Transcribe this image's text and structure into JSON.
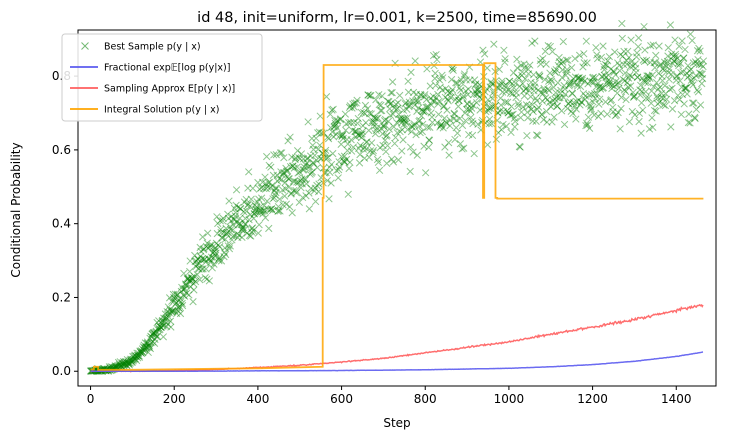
{
  "chart_data": {
    "type": "line",
    "title": "id 48, init=uniform, lr=0.001, k=2500, time=85690.00",
    "xlabel": "Step",
    "ylabel": "Conditional Probability",
    "xlim": [
      -30,
      1495
    ],
    "ylim": [
      -0.04,
      0.925
    ],
    "xticks": [
      0,
      200,
      400,
      600,
      800,
      1000,
      1200,
      1400
    ],
    "yticks": [
      0.0,
      0.2,
      0.4,
      0.6,
      0.8
    ],
    "ytick_labels": [
      "0.0",
      "0.2",
      "0.4",
      "0.6",
      "0.8"
    ],
    "grid": false,
    "legend_position": "upper-left",
    "series": [
      {
        "name": "Best Sample p(y | x)",
        "style": "scatter-x",
        "color": "#008000",
        "trend_x": [
          0,
          50,
          100,
          150,
          200,
          250,
          300,
          350,
          400,
          450,
          500,
          550,
          600,
          650,
          700,
          750,
          800,
          850,
          900,
          950,
          1000,
          1050,
          1100,
          1150,
          1200,
          1250,
          1300,
          1350,
          1400,
          1465
        ],
        "trend_y": [
          0.0,
          0.005,
          0.03,
          0.09,
          0.18,
          0.27,
          0.34,
          0.4,
          0.45,
          0.5,
          0.54,
          0.58,
          0.62,
          0.65,
          0.67,
          0.69,
          0.71,
          0.72,
          0.73,
          0.74,
          0.75,
          0.76,
          0.77,
          0.775,
          0.78,
          0.785,
          0.79,
          0.795,
          0.8,
          0.805
        ]
      },
      {
        "name": "Fractional exp𝔼[log p(y|x)]",
        "style": "line",
        "color": "#5b5bef",
        "x": [
          0,
          200,
          400,
          600,
          800,
          1000,
          1100,
          1200,
          1300,
          1400,
          1465
        ],
        "y": [
          0.0,
          0.0,
          0.001,
          0.002,
          0.004,
          0.008,
          0.012,
          0.018,
          0.027,
          0.04,
          0.052
        ]
      },
      {
        "name": "Sampling Approx E[p(y | x)]",
        "style": "line",
        "color": "#ff5e5e",
        "x": [
          0,
          100,
          200,
          300,
          400,
          500,
          600,
          700,
          800,
          900,
          1000,
          1100,
          1200,
          1300,
          1400,
          1465
        ],
        "y": [
          0.0,
          0.0,
          0.002,
          0.005,
          0.01,
          0.016,
          0.025,
          0.035,
          0.05,
          0.065,
          0.08,
          0.1,
          0.12,
          0.14,
          0.165,
          0.18
        ]
      },
      {
        "name": "Integral Solution p(y | x)",
        "style": "step",
        "color": "#ffa500",
        "x": [
          0,
          8,
          8,
          18,
          18,
          100,
          400,
          555,
          555,
          557,
          557,
          560,
          560,
          800,
          938,
          938,
          941,
          941,
          968,
          968,
          972,
          972,
          1465
        ],
        "y": [
          0.005,
          0.005,
          0.012,
          0.012,
          0.004,
          0.004,
          0.008,
          0.012,
          0.47,
          0.47,
          0.83,
          0.83,
          0.83,
          0.83,
          0.83,
          0.47,
          0.47,
          0.835,
          0.835,
          0.47,
          0.47,
          0.468,
          0.468
        ]
      }
    ]
  },
  "legend": {
    "items": [
      {
        "label": "Best Sample p(y | x)",
        "color": "#008000",
        "marker": "x"
      },
      {
        "label": "Fractional exp𝔼[log p(y|x)]",
        "color": "#5b5bef",
        "marker": "line"
      },
      {
        "label": "Sampling Approx E[p(y | x)]",
        "color": "#ff5e5e",
        "marker": "line"
      },
      {
        "label": "Integral Solution p(y | x)",
        "color": "#ffa500",
        "marker": "line"
      }
    ]
  }
}
